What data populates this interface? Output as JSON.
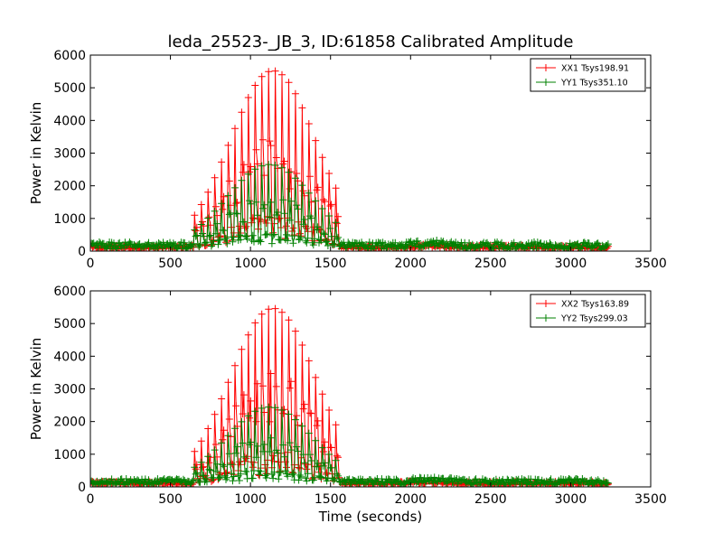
{
  "figure": {
    "title": "leda_25523-_JB_3, ID:61858 Calibrated Amplitude"
  },
  "chart_data": [
    {
      "type": "line",
      "title": "leda_25523-_JB_3, ID:61858 Calibrated Amplitude",
      "xlabel": "",
      "ylabel": "Power in Kelvin",
      "xlim": [
        0,
        3500
      ],
      "ylim": [
        0,
        6000
      ],
      "xticks": [
        "0",
        "500",
        "1000",
        "1500",
        "2000",
        "2500",
        "3000",
        "3500"
      ],
      "yticks": [
        "0",
        "1000",
        "2000",
        "3000",
        "4000",
        "5000",
        "6000"
      ],
      "grid": false,
      "legend_position": "top-right",
      "marker": "+",
      "x_range": [
        0,
        3240
      ],
      "burst_range": [
        650,
        1560
      ],
      "series": [
        {
          "name": "XX1 Tsys198.91",
          "color": "#ff0000",
          "baseline": 120,
          "noise": 60,
          "burst_peak": 5450,
          "burst_center": 1140
        },
        {
          "name": "YY1 Tsys351.10",
          "color": "#008000",
          "baseline": 170,
          "noise": 110,
          "burst_peak": 2550,
          "burst_center": 1120
        }
      ]
    },
    {
      "type": "line",
      "title": "",
      "xlabel": "Time (seconds)",
      "ylabel": "Power in Kelvin",
      "xlim": [
        0,
        3500
      ],
      "ylim": [
        0,
        6000
      ],
      "xticks": [
        "0",
        "500",
        "1000",
        "1500",
        "2000",
        "2500",
        "3000",
        "3500"
      ],
      "yticks": [
        "0",
        "1000",
        "2000",
        "3000",
        "4000",
        "5000",
        "6000"
      ],
      "grid": false,
      "legend_position": "top-right",
      "marker": "+",
      "x_range": [
        0,
        3240
      ],
      "burst_range": [
        650,
        1560
      ],
      "series": [
        {
          "name": "XX2 Tsys163.89",
          "color": "#ff0000",
          "baseline": 110,
          "noise": 55,
          "burst_peak": 5400,
          "burst_center": 1140
        },
        {
          "name": "YY2 Tsys299.03",
          "color": "#008000",
          "baseline": 160,
          "noise": 90,
          "burst_peak": 2350,
          "burst_center": 1120
        }
      ]
    }
  ]
}
